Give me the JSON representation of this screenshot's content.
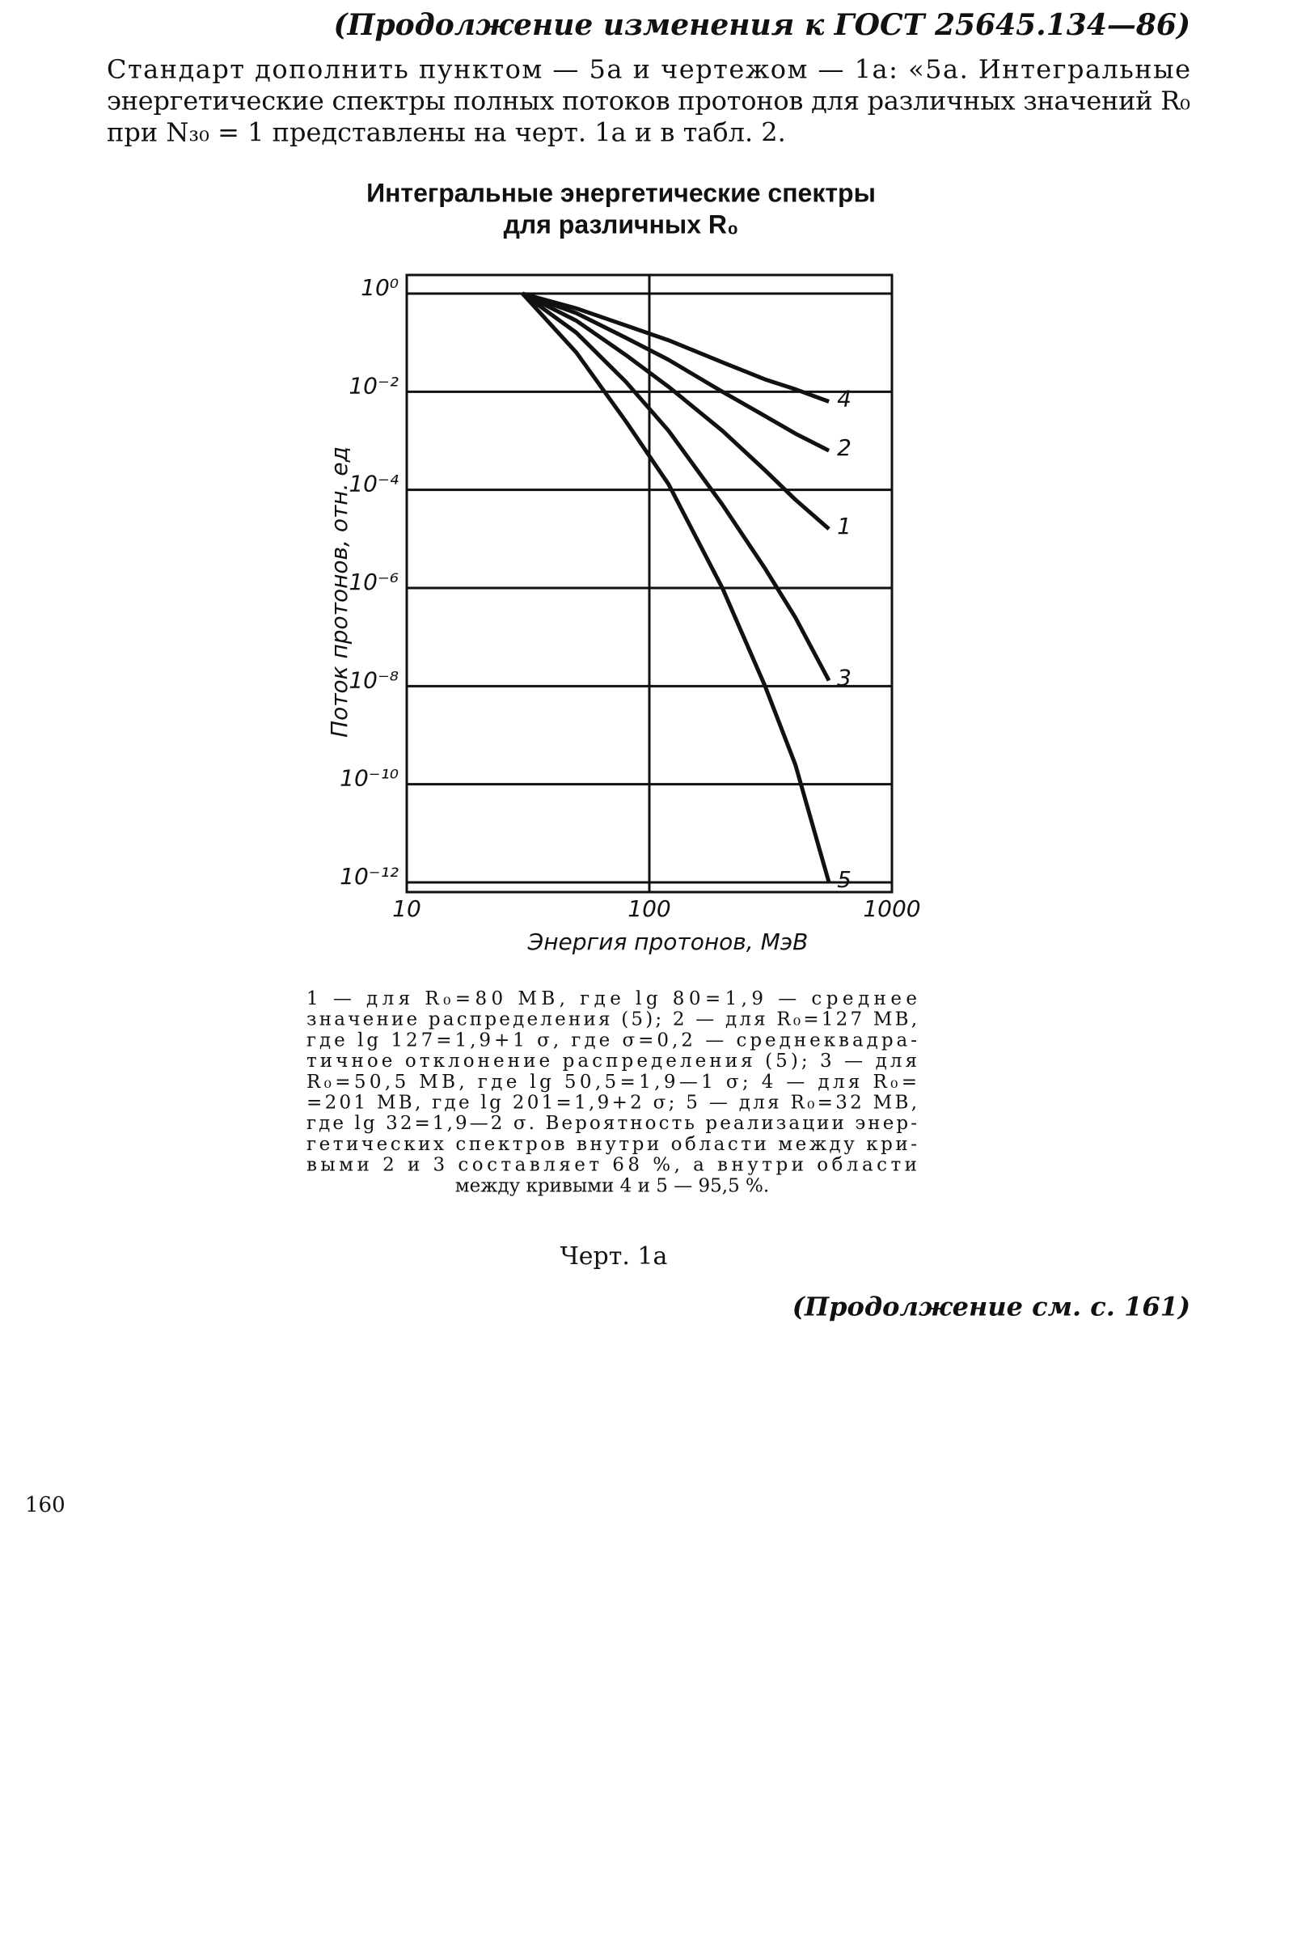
{
  "header": "(Продолжение изменения к ГОСТ 25645.134—86)",
  "paragraph": {
    "lines": [
      "Стандарт дополнить пунктом — 5а и чертежом — 1а: «5а. Интегральные",
      "энергетические спектры полных потоков протонов для различных значений R₀",
      "при N₃₀ = 1 представлены на черт. 1а и в табл. 2."
    ]
  },
  "chart_data": {
    "type": "line",
    "title": [
      "Интегральные энергетические спектры",
      "для различных R₀"
    ],
    "x_label": "Энергия протонов, МэВ",
    "y_label": "Поток протонов, отн. ед",
    "xscale": "log",
    "yscale": "log",
    "grid": true,
    "xlim": [
      10,
      1000
    ],
    "ylim": [
      1e-12,
      1
    ],
    "xticks": [
      10,
      100,
      1000
    ],
    "yticks": [
      {
        "value": 1,
        "label": "10⁰"
      },
      {
        "value": 0.01,
        "label": "10⁻²"
      },
      {
        "value": 0.0001,
        "label": "10⁻⁴"
      },
      {
        "value": 1e-06,
        "label": "10⁻⁶"
      },
      {
        "value": 1e-08,
        "label": "10⁻⁸"
      },
      {
        "value": 1e-10,
        "label": "10⁻¹⁰"
      },
      {
        "value": 1e-12,
        "label": "10⁻¹²"
      }
    ],
    "x": [
      30,
      50,
      80,
      120,
      200,
      300,
      400,
      550
    ],
    "series": [
      {
        "name": "4",
        "color": "#111111",
        "values": [
          1,
          0.5,
          0.224,
          0.112,
          0.0398,
          0.0178,
          0.0112,
          0.0063
        ]
      },
      {
        "name": "2",
        "color": "#111111",
        "values": [
          1,
          0.4,
          0.126,
          0.0447,
          0.01,
          0.0032,
          0.0014,
          0.00063
        ]
      },
      {
        "name": "1",
        "color": "#111111",
        "values": [
          1,
          0.28,
          0.056,
          0.0126,
          0.0016,
          0.00025,
          6.3e-05,
          1.6e-05
        ]
      },
      {
        "name": "3",
        "color": "#111111",
        "values": [
          1,
          0.16,
          0.016,
          0.0016,
          5e-05,
          2.5e-06,
          2.5e-07,
          1.3e-08
        ]
      },
      {
        "name": "5",
        "color": "#111111",
        "values": [
          1,
          0.063,
          0.0025,
          0.00013,
          1e-06,
          1e-08,
          2.5e-10,
          1e-12
        ]
      }
    ]
  },
  "caption": {
    "lines": [
      "1 — для R₀=80 МВ, где lg 80=1,9 — среднее",
      "значение распределения (5); 2 — для R₀=127 МВ,",
      "где lg 127=1,9+1 σ, где σ=0,2 — среднеквадра-",
      "тичное отклонение распределения (5); 3 — для",
      "R₀=50,5 МВ, где lg 50,5=1,9—1 σ; 4 — для R₀=",
      "=201 МВ, где lg 201=1,9+2 σ; 5 — для R₀=32 МВ,",
      "где lg 32=1,9—2 σ. Вероятность реализации энер-",
      "гетических спектров внутри области между кри-",
      "выми 2 и 3 составляет 68 %, а внутри области",
      "между кривыми 4 и 5 — 95,5 %."
    ]
  },
  "figure_label": "Черт. 1а",
  "continuation": "(Продолжение см. с. 161)",
  "page_number": "160"
}
